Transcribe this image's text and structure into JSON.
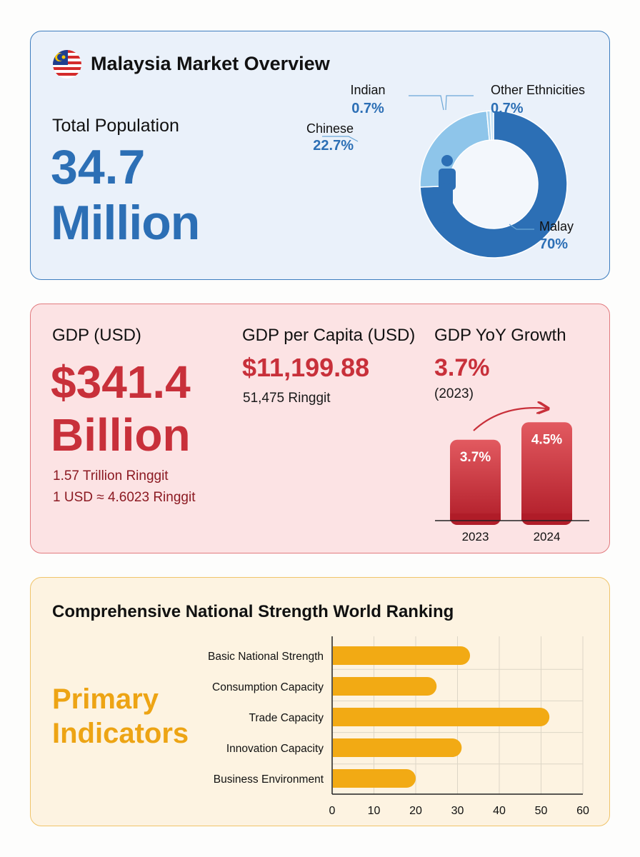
{
  "colors": {
    "blue": "#2c6fb5",
    "light_blue": "#8ec5ea",
    "red": "#c8303a",
    "gold": "#f2aa14"
  },
  "overview": {
    "flag_icon": "malaysia-flag-icon",
    "title": "Malaysia Market Overview",
    "population_label": "Total Population",
    "population_value": "34.7",
    "population_unit": "Million",
    "center_icon": "person-icon"
  },
  "gdp": {
    "label": "GDP (USD)",
    "value": "$341.4",
    "unit": "Billion",
    "ringgit": "1.57 Trillion Ringgit",
    "rate": "1 USD ≈ 4.6023 Ringgit",
    "per_capita_label": "GDP per Capita (USD)",
    "per_capita_value": "$11,199.88",
    "per_capita_ringgit": "51,475 Ringgit",
    "growth_label": "GDP YoY Growth",
    "growth_value": "3.7%",
    "growth_year": "(2023)"
  },
  "ranking": {
    "title": "Comprehensive National Strength World Ranking",
    "side_label_1": "Primary",
    "side_label_2": "Indicators"
  },
  "chart_data": [
    {
      "type": "pie",
      "variant": "donut",
      "categories": [
        "Malay",
        "Chinese",
        "Indian",
        "Other Ethnicities"
      ],
      "values": [
        70,
        22.7,
        0.7,
        0.7
      ],
      "labels": [
        "70%",
        "22.7%",
        "0.7%",
        "0.7%"
      ],
      "colors": [
        "#2c6fb5",
        "#8ec5ea",
        "#a9d4f0",
        "#c9e4f6"
      ]
    },
    {
      "type": "bar",
      "categories": [
        "2023",
        "2024"
      ],
      "values": [
        3.7,
        4.5
      ],
      "labels": [
        "3.7%",
        "4.5%"
      ],
      "color": "#c8303a"
    },
    {
      "type": "bar",
      "orientation": "horizontal",
      "categories": [
        "Basic National Strength",
        "Consumption Capacity",
        "Trade Capacity",
        "Innovation Capacity",
        "Business Environment"
      ],
      "values": [
        33,
        25,
        52,
        31,
        20
      ],
      "xlim": [
        0,
        60
      ],
      "xticks": [
        "0",
        "10",
        "20",
        "30",
        "40",
        "50",
        "60"
      ],
      "grid": true,
      "color": "#f2aa14"
    }
  ]
}
